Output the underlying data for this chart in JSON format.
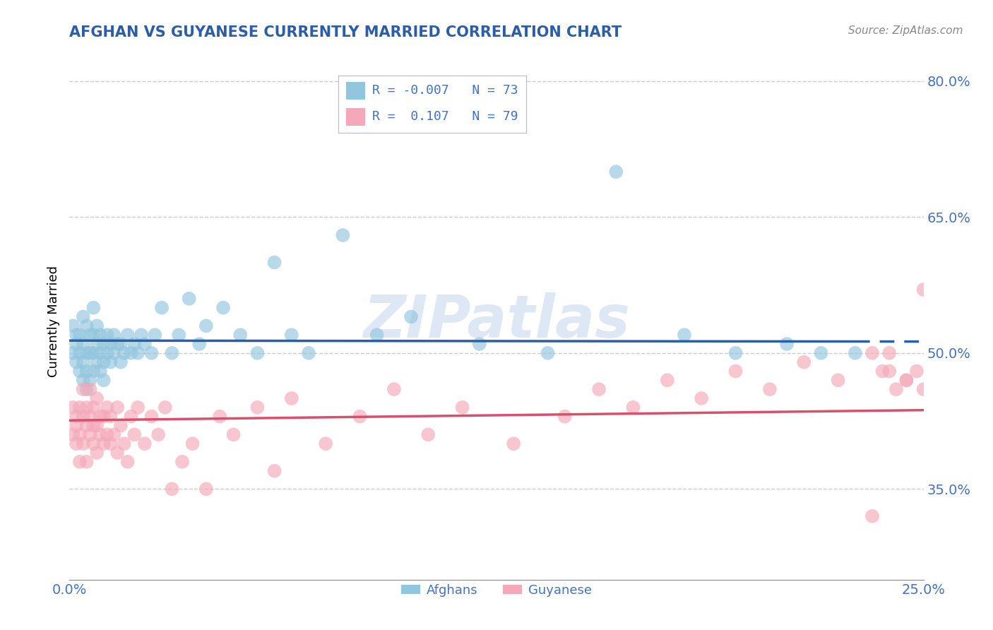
{
  "title": "AFGHAN VS GUYANESE CURRENTLY MARRIED CORRELATION CHART",
  "source": "Source: ZipAtlas.com",
  "ylabel": "Currently Married",
  "xlim": [
    0.0,
    0.25
  ],
  "ylim": [
    0.25,
    0.82
  ],
  "ytick_positions": [
    0.35,
    0.5,
    0.65,
    0.8
  ],
  "ytick_labels": [
    "35.0%",
    "50.0%",
    "65.0%",
    "80.0%"
  ],
  "xtick_positions": [
    0.0,
    0.25
  ],
  "xtick_labels": [
    "0.0%",
    "25.0%"
  ],
  "afghan_color": "#92C5DE",
  "guyanese_color": "#F4A8B8",
  "afghan_line_color": "#2B5DA8",
  "guyanese_line_color": "#D94F6E",
  "afghan_R": -0.007,
  "afghan_N": 73,
  "guyanese_R": 0.107,
  "guyanese_N": 79,
  "legend_label_afghan": "Afghans",
  "legend_label_guyanese": "Guyanese",
  "watermark": "ZIPatlas",
  "title_color": "#2B5DA8",
  "tick_color": "#4472C4",
  "afghan_x": [
    0.001,
    0.001,
    0.002,
    0.002,
    0.002,
    0.003,
    0.003,
    0.003,
    0.004,
    0.004,
    0.004,
    0.004,
    0.005,
    0.005,
    0.005,
    0.005,
    0.006,
    0.006,
    0.006,
    0.007,
    0.007,
    0.007,
    0.007,
    0.008,
    0.008,
    0.008,
    0.009,
    0.009,
    0.009,
    0.01,
    0.01,
    0.01,
    0.011,
    0.011,
    0.012,
    0.012,
    0.013,
    0.013,
    0.014,
    0.015,
    0.015,
    0.016,
    0.017,
    0.018,
    0.019,
    0.02,
    0.021,
    0.022,
    0.024,
    0.025,
    0.027,
    0.03,
    0.032,
    0.035,
    0.038,
    0.04,
    0.045,
    0.05,
    0.055,
    0.06,
    0.065,
    0.07,
    0.08,
    0.09,
    0.1,
    0.12,
    0.14,
    0.16,
    0.18,
    0.195,
    0.21,
    0.22,
    0.23
  ],
  "afghan_y": [
    0.5,
    0.53,
    0.49,
    0.51,
    0.52,
    0.48,
    0.5,
    0.52,
    0.47,
    0.49,
    0.51,
    0.54,
    0.46,
    0.48,
    0.5,
    0.53,
    0.47,
    0.5,
    0.52,
    0.48,
    0.5,
    0.52,
    0.55,
    0.49,
    0.51,
    0.53,
    0.48,
    0.5,
    0.52,
    0.47,
    0.49,
    0.51,
    0.5,
    0.52,
    0.49,
    0.51,
    0.5,
    0.52,
    0.51,
    0.49,
    0.51,
    0.5,
    0.52,
    0.5,
    0.51,
    0.5,
    0.52,
    0.51,
    0.5,
    0.52,
    0.55,
    0.5,
    0.52,
    0.56,
    0.51,
    0.53,
    0.55,
    0.52,
    0.5,
    0.6,
    0.52,
    0.5,
    0.63,
    0.52,
    0.54,
    0.51,
    0.5,
    0.7,
    0.52,
    0.5,
    0.51,
    0.5,
    0.5
  ],
  "guyanese_x": [
    0.001,
    0.001,
    0.002,
    0.002,
    0.002,
    0.003,
    0.003,
    0.003,
    0.004,
    0.004,
    0.004,
    0.005,
    0.005,
    0.005,
    0.006,
    0.006,
    0.006,
    0.007,
    0.007,
    0.007,
    0.008,
    0.008,
    0.008,
    0.009,
    0.009,
    0.01,
    0.01,
    0.011,
    0.011,
    0.012,
    0.012,
    0.013,
    0.014,
    0.014,
    0.015,
    0.016,
    0.017,
    0.018,
    0.019,
    0.02,
    0.022,
    0.024,
    0.026,
    0.028,
    0.03,
    0.033,
    0.036,
    0.04,
    0.044,
    0.048,
    0.055,
    0.06,
    0.065,
    0.075,
    0.085,
    0.095,
    0.105,
    0.115,
    0.13,
    0.145,
    0.155,
    0.165,
    0.175,
    0.185,
    0.195,
    0.205,
    0.215,
    0.225,
    0.235,
    0.24,
    0.245,
    0.25,
    0.25,
    0.248,
    0.245,
    0.242,
    0.24,
    0.238,
    0.235
  ],
  "guyanese_y": [
    0.44,
    0.41,
    0.43,
    0.4,
    0.42,
    0.38,
    0.41,
    0.44,
    0.4,
    0.43,
    0.46,
    0.42,
    0.44,
    0.38,
    0.41,
    0.43,
    0.46,
    0.4,
    0.42,
    0.44,
    0.39,
    0.42,
    0.45,
    0.41,
    0.43,
    0.4,
    0.43,
    0.41,
    0.44,
    0.4,
    0.43,
    0.41,
    0.44,
    0.39,
    0.42,
    0.4,
    0.38,
    0.43,
    0.41,
    0.44,
    0.4,
    0.43,
    0.41,
    0.44,
    0.35,
    0.38,
    0.4,
    0.35,
    0.43,
    0.41,
    0.44,
    0.37,
    0.45,
    0.4,
    0.43,
    0.46,
    0.41,
    0.44,
    0.4,
    0.43,
    0.46,
    0.44,
    0.47,
    0.45,
    0.48,
    0.46,
    0.49,
    0.47,
    0.5,
    0.48,
    0.47,
    0.46,
    0.57,
    0.48,
    0.47,
    0.46,
    0.5,
    0.48,
    0.32
  ]
}
